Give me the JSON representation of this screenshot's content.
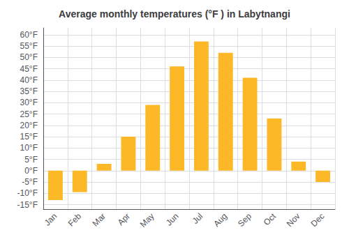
{
  "chart_data": {
    "type": "bar",
    "title": "Average monthly temperatures (°F ) in Labytnangi",
    "categories": [
      "Jan",
      "Feb",
      "Mar",
      "Apr",
      "May",
      "Jun",
      "Jul",
      "Aug",
      "Sep",
      "Oct",
      "Nov",
      "Dec"
    ],
    "values": [
      -13,
      -9.5,
      3,
      15,
      29,
      46,
      57,
      52,
      41,
      23,
      4,
      -5
    ],
    "color": "#FDB827",
    "ylim": [
      -17,
      63
    ],
    "yticks": [
      {
        "value": -15,
        "label": "-15°F"
      },
      {
        "value": -10,
        "label": "-10°F"
      },
      {
        "value": -5,
        "label": "-5°F"
      },
      {
        "value": 0,
        "label": "0°F"
      },
      {
        "value": 5,
        "label": "5°F"
      },
      {
        "value": 10,
        "label": "10°F"
      },
      {
        "value": 15,
        "label": "15°F"
      },
      {
        "value": 20,
        "label": "20°F"
      },
      {
        "value": 25,
        "label": "25°F"
      },
      {
        "value": 30,
        "label": "30°F"
      },
      {
        "value": 35,
        "label": "35°F"
      },
      {
        "value": 40,
        "label": "40°F"
      },
      {
        "value": 45,
        "label": "45°F"
      },
      {
        "value": 50,
        "label": "50°F"
      },
      {
        "value": 55,
        "label": "55°F"
      },
      {
        "value": 60,
        "label": "60°F"
      }
    ],
    "grid": true
  }
}
